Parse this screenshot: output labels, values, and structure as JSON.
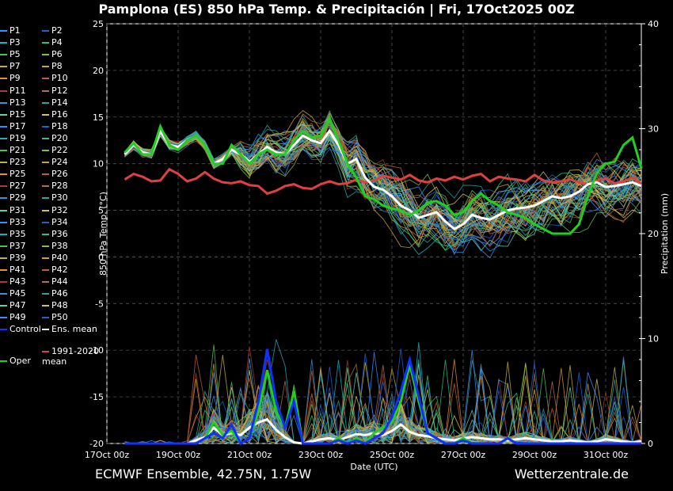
{
  "title": "Pamplona  (ES)  850 hPa Temp. & Precipitación | Fri, 17Oct2025 00Z",
  "footer_left": "ECMWF Ensemble, 42.75N, 1.75W",
  "footer_right": "Wetterzentrale.de",
  "chart_data": {
    "type": "line",
    "title": "Pamplona  (ES)  850 hPa Temp. & Precipitación | Fri, 17Oct2025 00Z",
    "xlabel": "Date (UTC)",
    "ylabel": "850 hPa Temp. (°C)",
    "y2label": "Precipitation (mm)",
    "ylim": [
      -20,
      25
    ],
    "y2lim": [
      0,
      40
    ],
    "xlim_hours": [
      0,
      360
    ],
    "x_tick_labels": [
      "17Oct 00z",
      "19Oct 00z",
      "21Oct 00z",
      "23Oct 00z",
      "25Oct 00z",
      "27Oct 00z",
      "29Oct 00z",
      "31Oct 00z"
    ],
    "y_tick_labels": [
      "25",
      "20",
      "15",
      "10",
      "5",
      "0",
      "-5",
      "-10",
      "-15",
      "-20"
    ],
    "y2_tick_labels": [
      "40",
      "30",
      "20",
      "10",
      "0"
    ],
    "grid": true,
    "x_hours": [
      12,
      18,
      24,
      30,
      36,
      42,
      48,
      54,
      60,
      66,
      72,
      78,
      84,
      90,
      96,
      102,
      108,
      114,
      120,
      126,
      132,
      138,
      144,
      150,
      156,
      162,
      168,
      174,
      180,
      186,
      192,
      198,
      204,
      210,
      216,
      222,
      228,
      234,
      240,
      246,
      252,
      258,
      264,
      270,
      276,
      282,
      288,
      294,
      300,
      306,
      312,
      318,
      324,
      330,
      336,
      342,
      348,
      354,
      360
    ],
    "series": [
      {
        "name": "1991-2020 mean",
        "color": "#e04040",
        "width": 3,
        "values": [
          8.3,
          8.9,
          8.6,
          8.1,
          8.2,
          9.4,
          8.9,
          8.1,
          8.4,
          9.1,
          8.4,
          8.0,
          7.9,
          8.1,
          7.7,
          7.6,
          6.8,
          7.1,
          7.6,
          7.8,
          7.4,
          7.3,
          7.8,
          8.1,
          7.8,
          7.9,
          8.3,
          8.0,
          8.2,
          8.7,
          8.5,
          8.3,
          8.8,
          8.2,
          8.0,
          8.4,
          8.2,
          8.6,
          8.3,
          8.7,
          8.9,
          8.1,
          8.6,
          8.4,
          8.3,
          8.1,
          8.8,
          8.2,
          8.0,
          8.1,
          8.3,
          8.0,
          7.8,
          8.2,
          8.4,
          7.9,
          8.1,
          8.5,
          7.8
        ]
      },
      {
        "name": "Ens. mean",
        "color": "#ffffff",
        "width": 3,
        "values": [
          11.0,
          12.0,
          11.2,
          11.0,
          13.5,
          12.0,
          11.8,
          12.5,
          13.0,
          12.0,
          10.0,
          10.5,
          11.5,
          11.0,
          10.2,
          11.0,
          11.8,
          11.2,
          11.0,
          12.0,
          13.0,
          12.5,
          12.2,
          13.5,
          12.0,
          10.0,
          10.5,
          8.5,
          7.5,
          7.2,
          6.5,
          5.5,
          5.0,
          4.2,
          4.5,
          4.8,
          3.8,
          3.0,
          3.5,
          4.5,
          4.2,
          4.0,
          4.5,
          5.0,
          5.2,
          5.3,
          5.5,
          6.0,
          6.5,
          6.3,
          6.5,
          7.0,
          7.8,
          8.0,
          7.5,
          7.6,
          7.8,
          8.0,
          7.6
        ]
      },
      {
        "name": "Oper",
        "color": "#20d020",
        "width": 3,
        "values": [
          11.2,
          12.2,
          11.0,
          11.0,
          14.0,
          12.0,
          11.5,
          12.5,
          13.0,
          12.0,
          10.0,
          10.0,
          12.0,
          11.0,
          10.0,
          11.0,
          11.5,
          11.0,
          11.0,
          12.5,
          13.5,
          12.8,
          13.0,
          14.8,
          12.5,
          10.0,
          8.5,
          6.5,
          6.2,
          5.5,
          5.2,
          5.0,
          4.5,
          5.0,
          5.8,
          6.0,
          5.5,
          4.5,
          4.8,
          6.0,
          6.8,
          6.0,
          5.5,
          4.8,
          4.5,
          4.2,
          3.5,
          3.0,
          2.5,
          2.5,
          2.5,
          3.5,
          6.5,
          9.0,
          10.0,
          10.2,
          12.0,
          12.8,
          9.5
        ]
      }
    ],
    "precip_series": [
      {
        "name": "Ens. mean",
        "color": "#ffffff",
        "width": 3,
        "values": [
          0,
          0,
          0,
          0,
          0,
          0,
          0,
          0,
          0.3,
          0.6,
          1.5,
          0.8,
          1.0,
          0.8,
          1.5,
          2.0,
          2.3,
          1.3,
          0.6,
          0.1,
          0,
          0.2,
          0.4,
          0.5,
          0.3,
          0.6,
          0.9,
          0.8,
          1.0,
          0.8,
          1.2,
          1.8,
          1.1,
          0.8,
          0.7,
          0.5,
          0.4,
          0.3,
          0.5,
          0.6,
          0.5,
          0.4,
          0.4,
          0.3,
          0.4,
          0.5,
          0.4,
          0.3,
          0.2,
          0.2,
          0.3,
          0.2,
          0.1,
          0.2,
          0.4,
          0.3,
          0.2,
          0.1,
          0.2
        ]
      },
      {
        "name": "Oper",
        "color": "#20d020",
        "width": 3,
        "values": [
          0,
          0,
          0,
          0,
          0,
          0,
          0,
          0,
          0,
          0.5,
          2.0,
          0.8,
          1.2,
          0,
          0.5,
          3.0,
          7.0,
          3.0,
          1.5,
          5.0,
          0,
          0,
          0,
          0,
          0.5,
          0,
          0.5,
          0,
          1.0,
          1.5,
          2.0,
          4.0,
          7.5,
          4.0,
          1.0,
          0.5,
          0,
          0,
          0.5,
          0,
          0,
          0,
          0,
          0.5,
          0,
          0,
          0,
          0,
          0,
          0,
          0,
          0,
          0,
          0,
          0,
          0,
          0,
          0,
          0
        ]
      },
      {
        "name": "Control",
        "color": "#1030ff",
        "width": 3,
        "values": [
          0,
          0,
          0,
          0,
          0,
          0,
          0,
          0,
          0,
          0.5,
          1.0,
          0.5,
          1.8,
          0,
          0.5,
          4.0,
          9.0,
          4.0,
          1.5,
          4.0,
          0,
          0,
          0,
          0,
          0.3,
          0,
          0.3,
          0,
          0.5,
          1.0,
          2.5,
          5.0,
          8.0,
          4.5,
          1.0,
          0.5,
          0,
          0,
          0.3,
          0,
          0,
          0,
          0,
          0.5,
          0,
          0,
          0,
          0,
          0,
          0,
          0,
          0,
          0,
          0,
          0,
          0,
          0,
          0,
          0
        ]
      }
    ],
    "members": [
      "P1",
      "P2",
      "P3",
      "P4",
      "P5",
      "P6",
      "P7",
      "P8",
      "P9",
      "P10",
      "P11",
      "P12",
      "P13",
      "P14",
      "P15",
      "P16",
      "P17",
      "P18",
      "P19",
      "P20",
      "P21",
      "P22",
      "P23",
      "P24",
      "P25",
      "P26",
      "P27",
      "P28",
      "P29",
      "P30",
      "P31",
      "P32",
      "P33",
      "P34",
      "P35",
      "P36",
      "P37",
      "P38",
      "P39",
      "P40",
      "P41",
      "P42",
      "P43",
      "P44",
      "P45",
      "P46",
      "P47",
      "P48",
      "P49",
      "P50"
    ],
    "legend_extra": [
      {
        "name": "Control",
        "color": "#1030ff"
      },
      {
        "name": "Ens. mean",
        "color": "#ffffff"
      },
      {
        "name": "1991-2020 mean",
        "color": "#e04040"
      },
      {
        "name": "Oper",
        "color": "#20d020"
      }
    ]
  }
}
